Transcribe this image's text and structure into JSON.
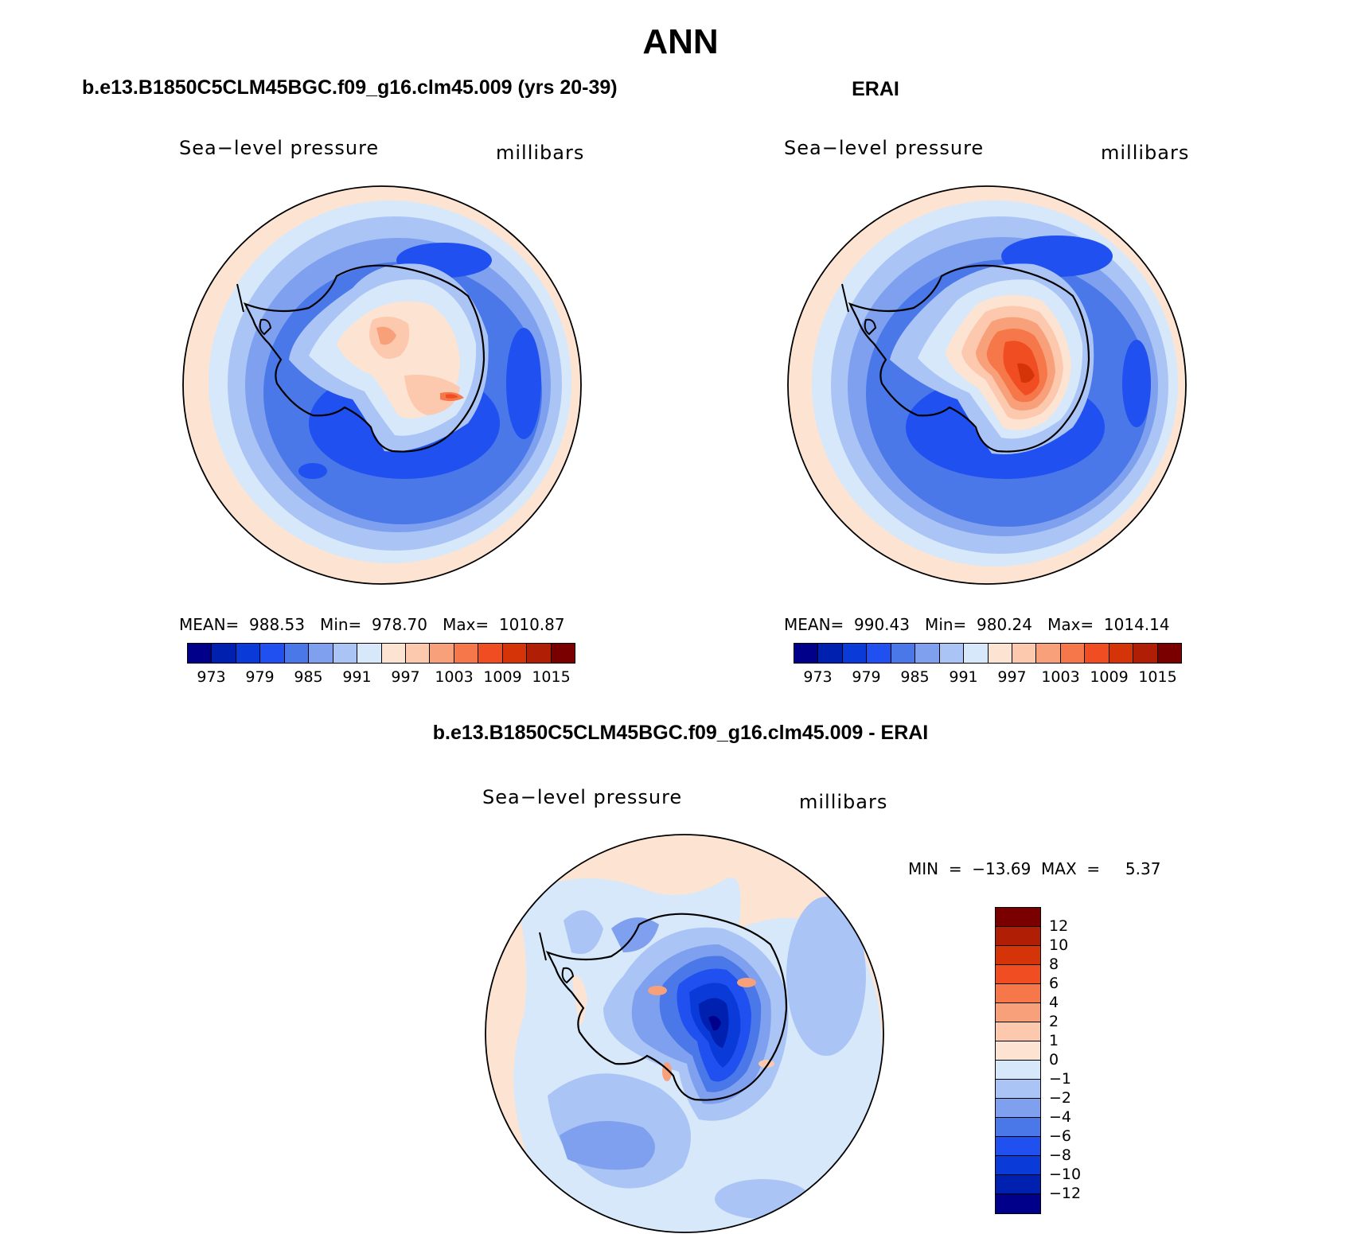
{
  "main_title": "ANN",
  "panels": {
    "model": {
      "title": "b.e13.B1850C5CLM45BGC.f09_g16.clm45.009 (yrs 20-39)",
      "left_label": "Sea−level pressure",
      "right_label": "millibars",
      "stats": "MEAN=  988.53   Min=  978.70   Max=  1010.87"
    },
    "obs": {
      "title": "ERAI",
      "left_label": "Sea−level pressure",
      "right_label": "millibars",
      "stats": "MEAN=  990.43   Min=  980.24   Max=  1014.14"
    },
    "diff": {
      "title": "b.e13.B1850C5CLM45BGC.f09_g16.clm45.009 - ERAI",
      "left_label": "Sea−level pressure",
      "right_label": "millibars",
      "stats": "MIN  =  −13.69  MAX  =     5.37"
    }
  },
  "colorbar_horizontal": {
    "colors": [
      "#00008b",
      "#0020b0",
      "#0a3ad8",
      "#2050f0",
      "#4a78e8",
      "#7ea0ee",
      "#aac4f6",
      "#d6e8fa",
      "#fde4d2",
      "#fcc8ae",
      "#f8a07a",
      "#f6784a",
      "#f04e22",
      "#d43408",
      "#b01e06",
      "#7a0000"
    ],
    "labels": [
      "973",
      "979",
      "985",
      "991",
      "997",
      "1003",
      "1009",
      "1015"
    ]
  },
  "colorbar_vertical": {
    "colors": [
      "#7a0000",
      "#b01e06",
      "#d43408",
      "#f04e22",
      "#f6784a",
      "#f8a07a",
      "#fcc8ae",
      "#fde4d2",
      "#d6e8fa",
      "#aac4f6",
      "#7ea0ee",
      "#4a78e8",
      "#2050f0",
      "#0a3ad8",
      "#0020b0",
      "#00008b"
    ],
    "labels": [
      "12",
      "10",
      "8",
      "6",
      "4",
      "2",
      "1",
      "0",
      "−1",
      "−2",
      "−4",
      "−6",
      "−8",
      "−10",
      "−12"
    ]
  }
}
